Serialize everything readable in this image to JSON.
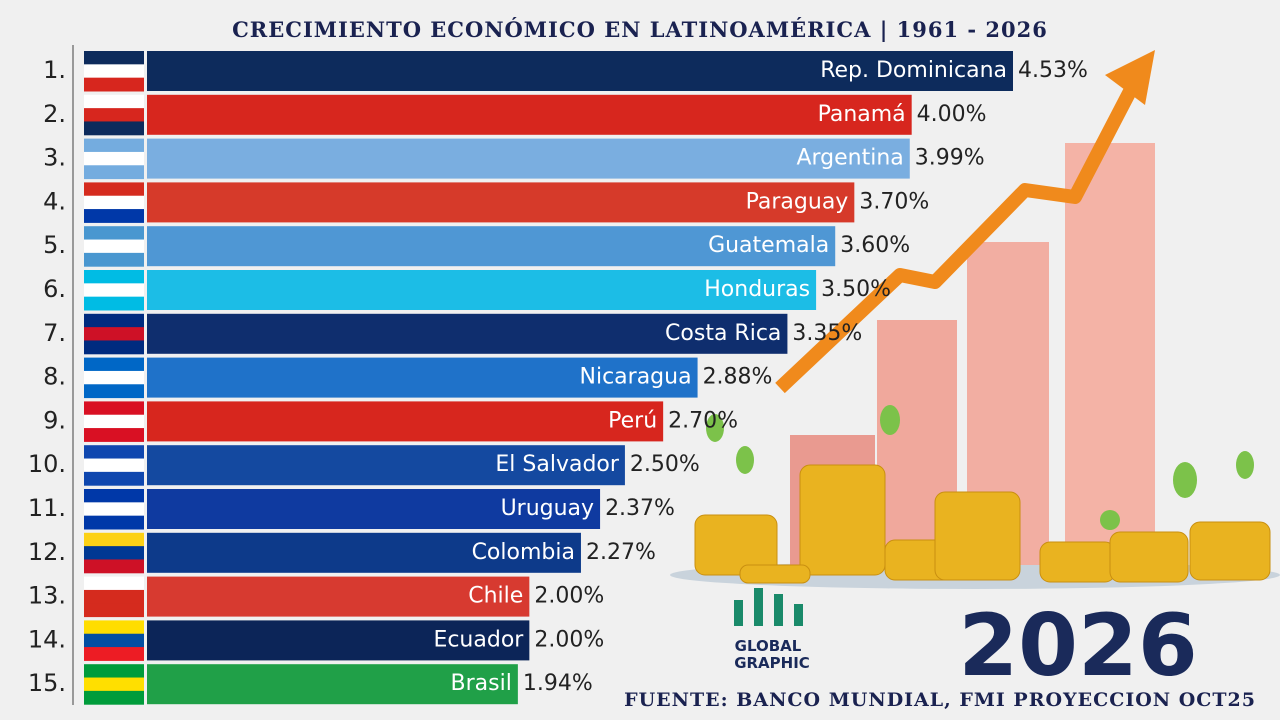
{
  "chart_data": {
    "type": "bar",
    "orientation": "horizontal",
    "title": "CRECIMIENTO ECONÓMICO EN LATINOAMÉRICA | 1961 - 2026",
    "ranks": [
      "1.",
      "2.",
      "3.",
      "4.",
      "5.",
      "6.",
      "7.",
      "8.",
      "9.",
      "10.",
      "11.",
      "12.",
      "13.",
      "14.",
      "15."
    ],
    "categories": [
      "Rep. Dominicana",
      "Panamá",
      "Argentina",
      "Paraguay",
      "Guatemala",
      "Honduras",
      "Costa Rica",
      "Nicaragua",
      "Perú",
      "El Salvador",
      "Uruguay",
      "Colombia",
      "Chile",
      "Ecuador",
      "Brasil"
    ],
    "values": [
      4.53,
      4.0,
      3.99,
      3.7,
      3.6,
      3.5,
      3.35,
      2.88,
      2.7,
      2.5,
      2.37,
      2.27,
      2.0,
      2.0,
      1.94
    ],
    "value_labels": [
      "4.53%",
      "4.00%",
      "3.99%",
      "3.70%",
      "3.60%",
      "3.50%",
      "3.35%",
      "2.88%",
      "2.70%",
      "2.50%",
      "2.37%",
      "2.27%",
      "2.00%",
      "2.00%",
      "1.94%"
    ],
    "colors": [
      "#0d2b5c",
      "#d7261e",
      "#7aaee0",
      "#d63a2a",
      "#4f97d4",
      "#1cbde6",
      "#0f2e6e",
      "#1f72c9",
      "#d7261e",
      "#1449a0",
      "#0f3aa0",
      "#0d3a8a",
      "#d73a30",
      "#0c2558",
      "#20a048"
    ],
    "year": "2026",
    "source": "FUENTE: BANCO MUNDIAL, FMI PROYECCION OCT25",
    "logo": [
      "GLOBAL",
      "GRAPHIC"
    ]
  }
}
